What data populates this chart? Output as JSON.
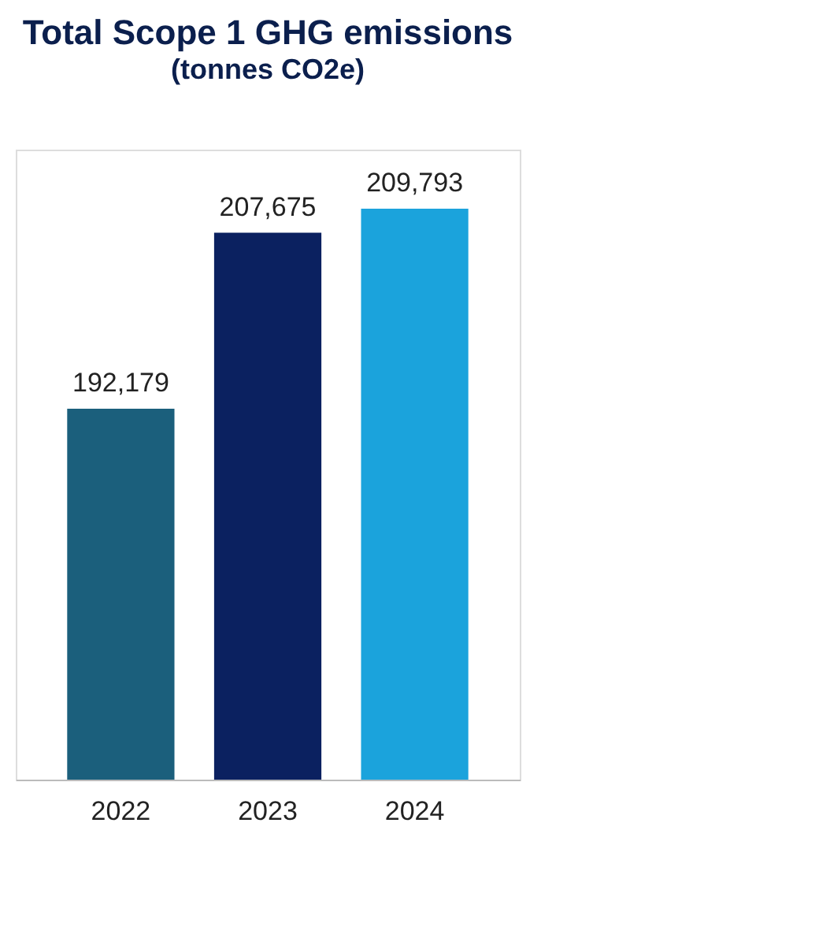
{
  "chart_data": {
    "type": "bar",
    "title": "Total Scope 1 GHG emissions",
    "subtitle": "(tonnes CO2e)",
    "categories": [
      "2022",
      "2023",
      "2024"
    ],
    "values": [
      192179,
      207675,
      209793
    ],
    "colors": [
      "#1b5f7c",
      "#0b2160",
      "#1ba3dc"
    ],
    "value_labels": [
      "192,179",
      "207,675",
      "209,793"
    ],
    "ylim": [
      159500,
      215000
    ],
    "grid": false
  }
}
